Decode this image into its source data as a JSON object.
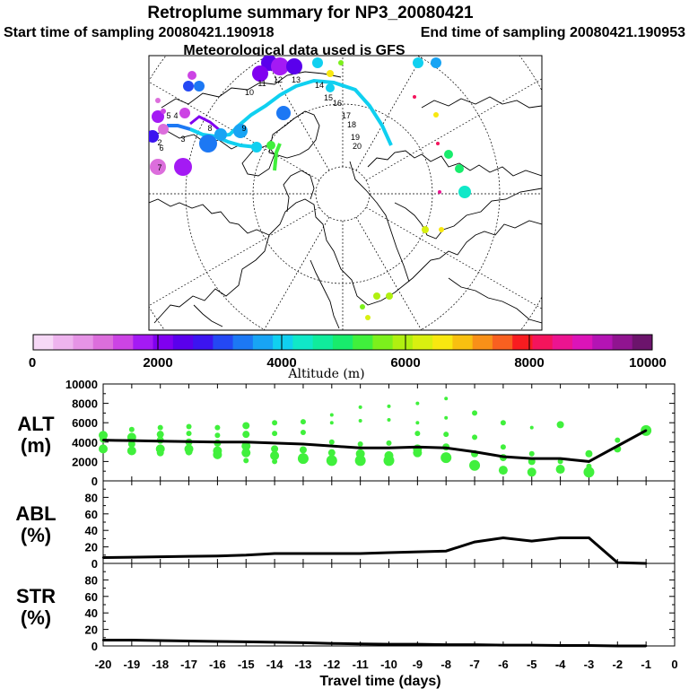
{
  "header": {
    "title": "Retroplume summary for NP3_20080421",
    "start_label": "Start time of sampling 20080421.190918",
    "end_label": "End time of sampling 20080421.190953",
    "met_label": "Meteorological data used is GFS"
  },
  "colorbar": {
    "label": "Altitude (m)",
    "ticks": [
      "0",
      "2000",
      "4000",
      "6000",
      "8000",
      "10000"
    ],
    "colors": [
      "#f6d8f6",
      "#eeb4ee",
      "#e694e6",
      "#dc6edc",
      "#cc44e4",
      "#a41af4",
      "#8000f0",
      "#5a00ec",
      "#3c14f0",
      "#2448f4",
      "#1c78f4",
      "#18a4f4",
      "#10d0f0",
      "#10e8c8",
      "#10ec9c",
      "#18ec6c",
      "#40f03c",
      "#7cf01c",
      "#b0f010",
      "#d8f010",
      "#f8e810",
      "#f8c010",
      "#f89018",
      "#f86020",
      "#f81c20",
      "#f4145c",
      "#ec1490",
      "#dc14b8",
      "#b414b4",
      "#901490",
      "#6c146c"
    ]
  },
  "map": {
    "track_labels": [
      "2",
      "3",
      "4",
      "5",
      "6",
      "7",
      "8",
      "9",
      "10",
      "11",
      "12",
      "13",
      "14",
      "15",
      "16",
      "17",
      "18",
      "19",
      "20"
    ]
  },
  "chart_data": [
    {
      "type": "line",
      "panel": "ALT",
      "ylabel": "ALT (m)",
      "ylabel_lines": [
        "ALT",
        "(m)"
      ],
      "xlabel": "Travel time (days)",
      "xlim": [
        -20,
        0
      ],
      "ylim": [
        0,
        10000
      ],
      "yticks": [
        "0",
        "2000",
        "4000",
        "6000",
        "8000",
        "10000"
      ],
      "x": [
        -20,
        -19,
        -18,
        -17,
        -16,
        -15,
        -14,
        -13,
        -12,
        -11,
        -10,
        -9,
        -8,
        -7,
        -6,
        -5,
        -4,
        -3,
        -2,
        -1
      ],
      "values": [
        4200,
        4150,
        4100,
        4050,
        4000,
        4000,
        3900,
        3800,
        3600,
        3400,
        3400,
        3500,
        3400,
        3000,
        2500,
        2300,
        2300,
        2000,
        3600,
        5200
      ],
      "clusters": [
        {
          "x": -20,
          "alts": [
            4700,
            4300,
            3300
          ],
          "sizes": [
            5,
            4,
            5
          ]
        },
        {
          "x": -19,
          "alts": [
            5300,
            4500,
            3800,
            3100
          ],
          "sizes": [
            3,
            5,
            4,
            5
          ]
        },
        {
          "x": -18,
          "alts": [
            5500,
            4800,
            4200,
            3300,
            2900
          ],
          "sizes": [
            3,
            4,
            4,
            5,
            4
          ]
        },
        {
          "x": -17,
          "alts": [
            5600,
            4900,
            4000,
            3300,
            3000
          ],
          "sizes": [
            3,
            3,
            4,
            5,
            4
          ]
        },
        {
          "x": -16,
          "alts": [
            5500,
            4700,
            3900,
            3100,
            2700
          ],
          "sizes": [
            3,
            3,
            4,
            5,
            5
          ]
        },
        {
          "x": -15,
          "alts": [
            5700,
            4800,
            3600,
            2900,
            2100
          ],
          "sizes": [
            4,
            4,
            5,
            5,
            3
          ]
        },
        {
          "x": -14,
          "alts": [
            6000,
            4900,
            3300,
            2600,
            2000
          ],
          "sizes": [
            3,
            3,
            4,
            5,
            3
          ]
        },
        {
          "x": -13,
          "alts": [
            6100,
            5000,
            3200,
            2300
          ],
          "sizes": [
            3,
            3,
            4,
            6
          ]
        },
        {
          "x": -12,
          "alts": [
            6800,
            6000,
            4000,
            2900,
            2100
          ],
          "sizes": [
            2,
            2,
            3,
            4,
            6
          ]
        },
        {
          "x": -11,
          "alts": [
            7600,
            6200,
            3800,
            2800,
            2100
          ],
          "sizes": [
            2,
            2,
            3,
            5,
            6
          ]
        },
        {
          "x": -10,
          "alts": [
            7700,
            6300,
            3900,
            2600,
            2100
          ],
          "sizes": [
            2,
            2,
            3,
            5,
            6
          ]
        },
        {
          "x": -9,
          "alts": [
            8000,
            6000,
            4900,
            3300,
            2900
          ],
          "sizes": [
            2,
            2,
            3,
            5,
            5
          ]
        },
        {
          "x": -8,
          "alts": [
            8500,
            6500,
            4800,
            3500,
            2400
          ],
          "sizes": [
            2,
            2,
            3,
            4,
            6
          ]
        },
        {
          "x": -7,
          "alts": [
            7000,
            4500,
            2800,
            1600
          ],
          "sizes": [
            3,
            3,
            4,
            6
          ]
        },
        {
          "x": -6,
          "alts": [
            6000,
            3500,
            2400,
            1100
          ],
          "sizes": [
            3,
            3,
            4,
            5
          ]
        },
        {
          "x": -5,
          "alts": [
            5500,
            2800,
            2000,
            900
          ],
          "sizes": [
            2,
            3,
            4,
            5
          ]
        },
        {
          "x": -4,
          "alts": [
            5800,
            2000,
            1200
          ],
          "sizes": [
            4,
            3,
            5
          ]
        },
        {
          "x": -3,
          "alts": [
            2800,
            1500,
            900
          ],
          "sizes": [
            4,
            3,
            6
          ]
        },
        {
          "x": -2,
          "alts": [
            4200,
            3300
          ],
          "sizes": [
            3,
            4
          ]
        },
        {
          "x": -1,
          "alts": [
            5200
          ],
          "sizes": [
            6
          ]
        }
      ]
    },
    {
      "type": "line",
      "panel": "ABL",
      "ylabel": "ABL (%)",
      "ylabel_lines": [
        "ABL",
        "(%)"
      ],
      "xlim": [
        -20,
        0
      ],
      "ylim": [
        0,
        100
      ],
      "yticks": [
        "0",
        "20",
        "40",
        "60",
        "80"
      ],
      "x": [
        -20,
        -19,
        -18,
        -17,
        -16,
        -15,
        -14,
        -13,
        -12,
        -11,
        -10,
        -9,
        -8,
        -7,
        -6,
        -5,
        -4,
        -3,
        -2,
        -1
      ],
      "values": [
        7,
        7.5,
        8,
        8.5,
        9,
        10,
        12,
        12,
        12,
        12,
        13,
        14,
        15,
        26,
        31,
        27,
        31,
        31,
        1,
        0
      ]
    },
    {
      "type": "line",
      "panel": "STR",
      "ylabel": "STR (%)",
      "ylabel_lines": [
        "STR",
        "(%)"
      ],
      "xlim": [
        -20,
        0
      ],
      "ylim": [
        0,
        100
      ],
      "yticks": [
        "0",
        "20",
        "40",
        "60",
        "80"
      ],
      "xticks": [
        "-20",
        "-19",
        "-18",
        "-17",
        "-16",
        "-15",
        "-14",
        "-13",
        "-12",
        "-11",
        "-10",
        "-9",
        "-8",
        "-7",
        "-6",
        "-5",
        "-4",
        "-3",
        "-2",
        "-1",
        "0"
      ],
      "x": [
        -20,
        -19,
        -18,
        -17,
        -16,
        -15,
        -14,
        -13,
        -12,
        -11,
        -10,
        -9,
        -8,
        -7,
        -6,
        -5,
        -4,
        -3,
        -2,
        -1
      ],
      "values": [
        7,
        7,
        6.5,
        6,
        5.5,
        5,
        4.5,
        4,
        3,
        2.5,
        2,
        2,
        1.5,
        1.5,
        1,
        1,
        0.5,
        0.5,
        0,
        0
      ]
    }
  ]
}
